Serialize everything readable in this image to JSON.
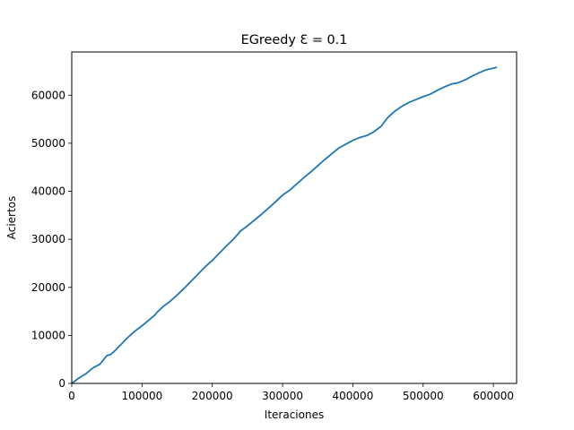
{
  "chart_data": {
    "type": "line",
    "title": "EGreedy Ɛ = 0.1",
    "xlabel": "Iteraciones",
    "ylabel": "Aciertos",
    "xlim": [
      0,
      633000
    ],
    "ylim": [
      0,
      69000
    ],
    "xticks": [
      0,
      100000,
      200000,
      300000,
      400000,
      500000,
      600000
    ],
    "xtick_labels": [
      "0",
      "100000",
      "200000",
      "300000",
      "400000",
      "500000",
      "600000"
    ],
    "yticks": [
      0,
      10000,
      20000,
      30000,
      40000,
      50000,
      60000
    ],
    "ytick_labels": [
      "0",
      "10000",
      "20000",
      "30000",
      "40000",
      "50000",
      "60000"
    ],
    "grid": false,
    "line_color": "#1f77b4",
    "series": [
      {
        "x": [
          0,
          10000,
          20000,
          30000,
          40000,
          50000,
          55000,
          60000,
          70000,
          80000,
          90000,
          100000,
          110000,
          118000,
          122000,
          130000,
          140000,
          150000,
          160000,
          170000,
          180000,
          190000,
          200000,
          210000,
          220000,
          230000,
          240000,
          250000,
          260000,
          270000,
          280000,
          290000,
          300000,
          310000,
          320000,
          330000,
          340000,
          350000,
          360000,
          370000,
          380000,
          390000,
          400000,
          410000,
          420000,
          430000,
          440000,
          450000,
          460000,
          470000,
          480000,
          490000,
          500000,
          510000,
          520000,
          530000,
          540000,
          550000,
          560000,
          570000,
          580000,
          590000,
          605000
        ],
        "y": [
          0,
          1100,
          2000,
          3200,
          4000,
          5800,
          6000,
          6600,
          8100,
          9600,
          10900,
          12000,
          13200,
          14200,
          14900,
          16000,
          17100,
          18400,
          19800,
          21300,
          22800,
          24300,
          25600,
          27100,
          28600,
          30000,
          31700,
          32800,
          34000,
          35200,
          36500,
          37800,
          39200,
          40200,
          41500,
          42800,
          44000,
          45300,
          46600,
          47800,
          49000,
          49800,
          50600,
          51200,
          51600,
          52400,
          53500,
          55400,
          56700,
          57700,
          58500,
          59100,
          59700,
          60200,
          61000,
          61700,
          62300,
          62600,
          63200,
          64000,
          64700,
          65300,
          65800
        ]
      }
    ]
  }
}
